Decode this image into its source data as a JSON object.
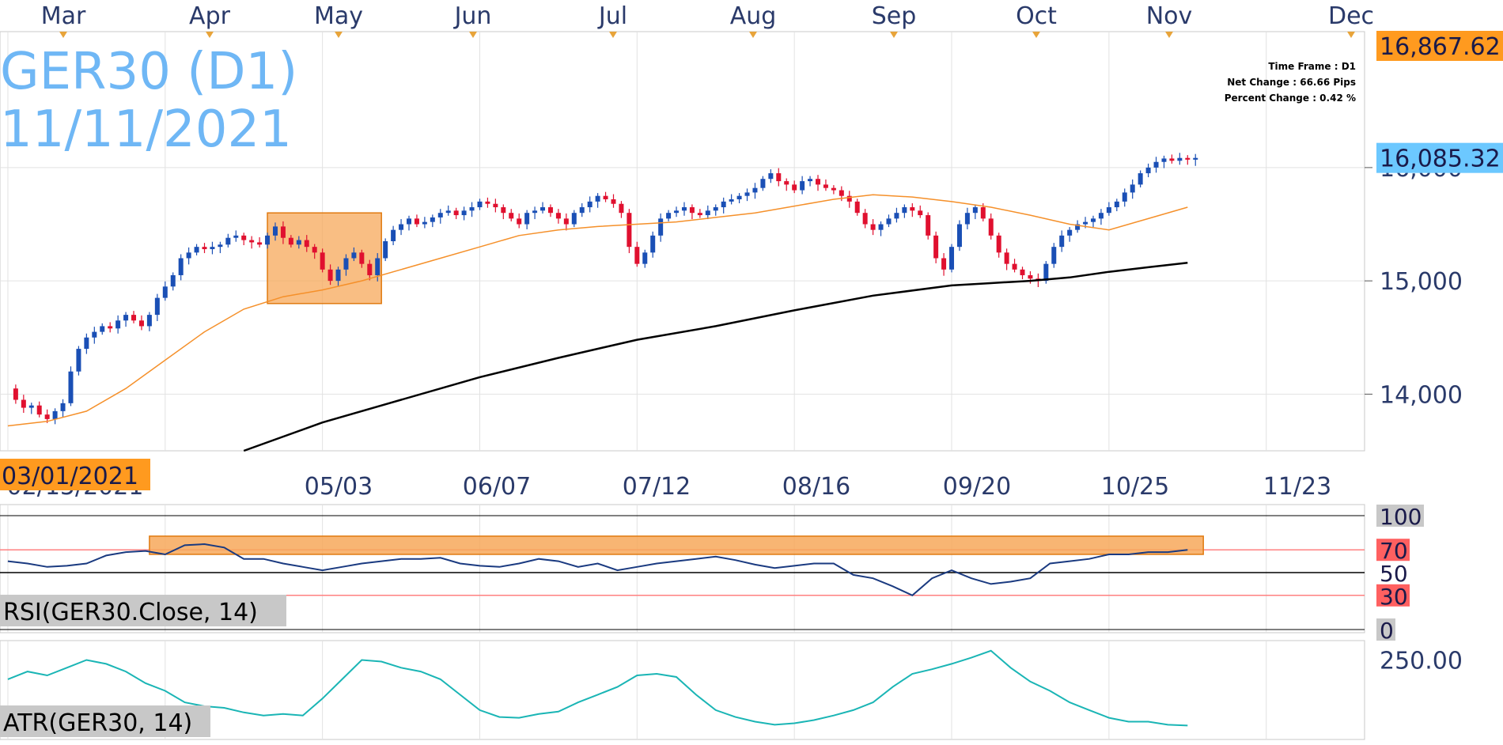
{
  "symbol_title": "GER30 (D1)",
  "date_title": "11/11/2021",
  "info": {
    "time_frame": "Time Frame : D1",
    "net_change": "Net Change : 66.66 Pips",
    "percent_change": "Percent Change : 0.42 %"
  },
  "start_date_badge": "03/01/2021",
  "colors": {
    "title": "#6fb7f5",
    "bull": "#1a4fb5",
    "bear": "#e0102f",
    "ma_short": "#f5902a",
    "ma_long": "#000000",
    "rsi_line": "#1a3a80",
    "atr_line": "#1ab5b5",
    "highlight": "#f7a85a",
    "top_price_badge": "#ff9a1f",
    "last_price_badge": "#6cc8ff"
  },
  "chart_data": [
    {
      "type": "candlestick",
      "title": "GER30 (D1)",
      "month_labels": [
        "Mar",
        "Apr",
        "May",
        "Jun",
        "Jul",
        "Aug",
        "Sep",
        "Oct",
        "Nov",
        "Dec"
      ],
      "x_tick_labels": [
        "02/15/2021",
        "05/03",
        "06/07",
        "07/12",
        "08/16",
        "09/20",
        "10/25",
        "11/23"
      ],
      "y_tick_labels": [
        "14,000",
        "15,000",
        "16,000"
      ],
      "y_ticks": [
        14000,
        15000,
        16000
      ],
      "ylim": [
        13500,
        17200
      ],
      "price_badges": [
        {
          "label": "16,867.62",
          "value": 16867.62
        },
        {
          "label": "16,085.32",
          "value": 16085.32
        }
      ],
      "highlight_zone": {
        "x_start": 66,
        "x_end": 95,
        "y_low": 14800,
        "y_high": 15600
      },
      "series": [
        {
          "kind": "close",
          "x": [
            0,
            2,
            4,
            6,
            8,
            10,
            12,
            14,
            16,
            18,
            20,
            22,
            24,
            26,
            28,
            30,
            32,
            34,
            36,
            38,
            40,
            42,
            44,
            46,
            48,
            50,
            52,
            54,
            56,
            58,
            60,
            62,
            64,
            66,
            68,
            70,
            72,
            74,
            76,
            78,
            80,
            82,
            84,
            86,
            88,
            90,
            92,
            94,
            96,
            98,
            100,
            102,
            104,
            106,
            108,
            110,
            112,
            114,
            116,
            118,
            120,
            122,
            124,
            126,
            128,
            130,
            132,
            134,
            136,
            138,
            140,
            142,
            144,
            146,
            148,
            150,
            152,
            154,
            156,
            158,
            160,
            162,
            164,
            166,
            168,
            170,
            172,
            174,
            176,
            178,
            180,
            182,
            184,
            186,
            188,
            190,
            192,
            194,
            196,
            198,
            200,
            202,
            204,
            206,
            208,
            210,
            212,
            214,
            216,
            218,
            220,
            222,
            224,
            226,
            228,
            230,
            232,
            234,
            236,
            238,
            240,
            242,
            244,
            246,
            248,
            250,
            252,
            254,
            256,
            258,
            260,
            262,
            264,
            266,
            268,
            270,
            272,
            274,
            276,
            278,
            280,
            282,
            284,
            286,
            288,
            290,
            292,
            294,
            296,
            298,
            300,
            302
          ],
          "values": [
            14050,
            13950,
            13880,
            13900,
            13820,
            13780,
            13850,
            13920,
            14200,
            14400,
            14500,
            14550,
            14600,
            14580,
            14650,
            14700,
            14650,
            14600,
            14700,
            14850,
            14950,
            15050,
            15200,
            15250,
            15300,
            15280,
            15300,
            15320,
            15380,
            15400,
            15360,
            15340,
            15320,
            15400,
            15480,
            15380,
            15320,
            15360,
            15300,
            15250,
            15100,
            15000,
            15100,
            15200,
            15250,
            15150,
            15050,
            15200,
            15350,
            15450,
            15500,
            15550,
            15500,
            15520,
            15560,
            15600,
            15620,
            15580,
            15620,
            15650,
            15700,
            15680,
            15650,
            15600,
            15550,
            15500,
            15600,
            15620,
            15650,
            15600,
            15550,
            15500,
            15600,
            15650,
            15700,
            15750,
            15720,
            15680,
            15600,
            15300,
            15150,
            15250,
            15400,
            15550,
            15600,
            15620,
            15650,
            15600,
            15580,
            15620,
            15650,
            15700,
            15720,
            15750,
            15780,
            15820,
            15900,
            15950,
            15880,
            15850,
            15800,
            15880,
            15900,
            15850,
            15820,
            15800,
            15750,
            15700,
            15600,
            15500,
            15450,
            15500,
            15550,
            15600,
            15650,
            15620,
            15580,
            15400,
            15200,
            15100,
            15300,
            15500,
            15600,
            15650,
            15550,
            15400,
            15250,
            15150,
            15100,
            15050,
            15020,
            15000,
            15150,
            15300,
            15400,
            15450,
            15500,
            15520,
            15550,
            15600,
            15650,
            15700,
            15780,
            15850,
            15950,
            16000,
            16050,
            16080,
            16060,
            16085,
            16070,
            16085
          ]
        },
        {
          "kind": "ma_short",
          "x": [
            0,
            10,
            20,
            30,
            40,
            50,
            60,
            70,
            80,
            90,
            100,
            110,
            120,
            130,
            140,
            150,
            160,
            170,
            180,
            190,
            200,
            210,
            220,
            230,
            240,
            250,
            260,
            270,
            280,
            290,
            300
          ],
          "values": [
            13720,
            13760,
            13850,
            14050,
            14300,
            14550,
            14750,
            14860,
            14920,
            15000,
            15100,
            15200,
            15300,
            15400,
            15450,
            15480,
            15500,
            15520,
            15560,
            15600,
            15660,
            15720,
            15760,
            15740,
            15700,
            15650,
            15580,
            15500,
            15450,
            15550,
            15650
          ]
        },
        {
          "kind": "ma_long",
          "x": [
            60,
            80,
            100,
            120,
            140,
            160,
            180,
            200,
            220,
            240,
            250,
            260,
            270,
            280,
            290,
            300
          ],
          "values": [
            13500,
            13750,
            13950,
            14150,
            14320,
            14480,
            14600,
            14740,
            14870,
            14960,
            14980,
            15000,
            15030,
            15080,
            15120,
            15160
          ]
        }
      ]
    },
    {
      "type": "line",
      "title": "RSI(GER30.Close, 14)",
      "y_tick_labels": [
        "100",
        "70",
        "50",
        "30",
        "0"
      ],
      "y_ticks": [
        100,
        70,
        50,
        30,
        0
      ],
      "ylim": [
        0,
        100
      ],
      "highlight_zone": {
        "x_start": 36,
        "x_end": 304,
        "y_low": 66,
        "y_high": 82
      },
      "series": [
        {
          "name": "RSI",
          "x": [
            0,
            5,
            10,
            15,
            20,
            25,
            30,
            35,
            40,
            45,
            50,
            55,
            60,
            65,
            70,
            75,
            80,
            85,
            90,
            95,
            100,
            105,
            110,
            115,
            120,
            125,
            130,
            135,
            140,
            145,
            150,
            155,
            160,
            165,
            170,
            175,
            180,
            185,
            190,
            195,
            200,
            205,
            210,
            215,
            220,
            225,
            230,
            235,
            240,
            245,
            250,
            255,
            260,
            265,
            270,
            275,
            280,
            285,
            290,
            295,
            300
          ],
          "values": [
            60,
            58,
            55,
            56,
            58,
            65,
            68,
            69,
            66,
            74,
            75,
            72,
            62,
            62,
            58,
            55,
            52,
            55,
            58,
            60,
            62,
            62,
            63,
            58,
            56,
            55,
            58,
            62,
            60,
            55,
            58,
            52,
            55,
            58,
            60,
            62,
            64,
            61,
            57,
            54,
            56,
            58,
            58,
            48,
            45,
            38,
            30,
            45,
            52,
            45,
            40,
            42,
            45,
            58,
            60,
            62,
            66,
            66,
            68,
            68,
            70
          ]
        }
      ]
    },
    {
      "type": "line",
      "title": "ATR(GER30, 14)",
      "y_tick_labels": [
        "250.00"
      ],
      "y_ticks": [
        250
      ],
      "ylim": [
        150,
        270
      ],
      "series": [
        {
          "name": "ATR",
          "x": [
            0,
            5,
            10,
            15,
            20,
            25,
            30,
            35,
            40,
            45,
            50,
            55,
            60,
            65,
            70,
            75,
            80,
            85,
            90,
            95,
            100,
            105,
            110,
            115,
            120,
            125,
            130,
            135,
            140,
            145,
            150,
            155,
            160,
            165,
            170,
            175,
            180,
            185,
            190,
            195,
            200,
            205,
            210,
            215,
            220,
            225,
            230,
            235,
            240,
            245,
            250,
            255,
            260,
            265,
            270,
            275,
            280,
            285,
            290,
            295,
            300
          ],
          "values": [
            225,
            235,
            230,
            240,
            250,
            245,
            235,
            220,
            210,
            195,
            190,
            188,
            182,
            178,
            180,
            178,
            200,
            225,
            250,
            248,
            240,
            235,
            225,
            205,
            185,
            176,
            175,
            180,
            183,
            195,
            205,
            215,
            230,
            232,
            228,
            205,
            185,
            176,
            170,
            166,
            168,
            172,
            178,
            185,
            195,
            215,
            232,
            238,
            245,
            253,
            262,
            240,
            222,
            210,
            195,
            185,
            175,
            170,
            170,
            166,
            165
          ]
        }
      ]
    }
  ]
}
